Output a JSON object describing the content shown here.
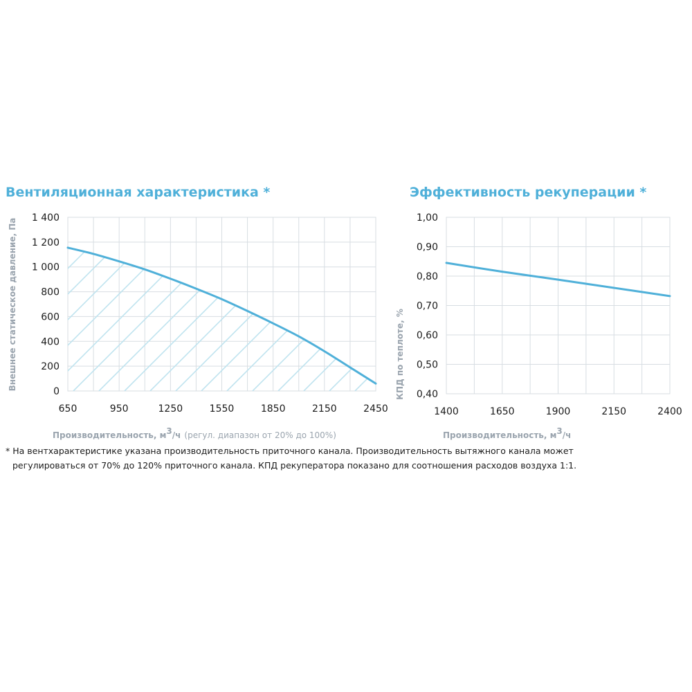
{
  "chart_data": [
    {
      "type": "area",
      "title": "Вентиляционная характеристика *",
      "xlabel": "Производительность, м³/ч",
      "xlabel_base": "Производительность, м",
      "xlabel_sup": "3",
      "xlabel_tail": "/ч",
      "xlabel_note": "(регул. диапазон от 20% до 100%)",
      "ylabel": "Внешнее статическое давление, Па",
      "xlim": [
        650,
        2450
      ],
      "ylim": [
        0,
        1400
      ],
      "x_ticks": [
        650,
        950,
        1250,
        1550,
        1850,
        2150,
        2450
      ],
      "x_tick_labels": [
        "650",
        "950",
        "1250",
        "1550",
        "1850",
        "2150",
        "2450"
      ],
      "x_grid": [
        650,
        800,
        950,
        1100,
        1250,
        1400,
        1550,
        1700,
        1850,
        2000,
        2150,
        2300,
        2450
      ],
      "y_ticks": [
        0,
        200,
        400,
        600,
        800,
        1000,
        1200,
        1400
      ],
      "y_tick_labels": [
        "0",
        "200",
        "400",
        "600",
        "800",
        "1 000",
        "1 200",
        "1 400"
      ],
      "series": [
        {
          "name": "Вентиляционная характеристика",
          "x": [
            650,
            800,
            950,
            1100,
            1250,
            1400,
            1550,
            1700,
            1850,
            2000,
            2150,
            2300,
            2450
          ],
          "values": [
            1155,
            1105,
            1045,
            980,
            905,
            825,
            740,
            645,
            545,
            440,
            320,
            190,
            60
          ],
          "color": "#4fb0d9"
        }
      ],
      "grid": true,
      "hatched_area": true
    },
    {
      "type": "line",
      "title": "Эффективность рекуперации *",
      "xlabel": "Производительность, м³/ч",
      "xlabel_base": "Производительность, м",
      "xlabel_sup": "3",
      "xlabel_tail": "/ч",
      "ylabel": "КПД по теплоте, %",
      "xlim": [
        1400,
        2400
      ],
      "ylim": [
        0.4,
        1.0
      ],
      "x_ticks": [
        1400,
        1650,
        1900,
        2150,
        2400
      ],
      "x_tick_labels": [
        "1400",
        "1650",
        "1900",
        "2150",
        "2400"
      ],
      "x_grid": [
        1400,
        1525,
        1650,
        1775,
        1900,
        2025,
        2150,
        2275,
        2400
      ],
      "y_ticks": [
        0.4,
        0.5,
        0.6,
        0.7,
        0.8,
        0.9,
        1.0
      ],
      "y_tick_labels": [
        "0,40",
        "0,50",
        "0,60",
        "0,70",
        "0,80",
        "0,90",
        "1,00"
      ],
      "series": [
        {
          "name": "КПД",
          "x": [
            1400,
            1650,
            1900,
            2150,
            2400
          ],
          "values": [
            0.845,
            0.815,
            0.788,
            0.76,
            0.732
          ],
          "color": "#4fb0d9"
        }
      ],
      "grid": true
    }
  ],
  "footnote": {
    "line1": "* На вентхарактеристике указана производительность приточного канала. Производительность вытяжного канала может",
    "line2": "регулироваться от 70% до 120% приточного канала. КПД рекуператора показано для соотношения расходов воздуха 1:1."
  },
  "colors": {
    "accent": "#4fb0d9",
    "hatch": "#bfe3ef",
    "grid": "#d7dde2",
    "axis_label": "#9aa4ae"
  }
}
